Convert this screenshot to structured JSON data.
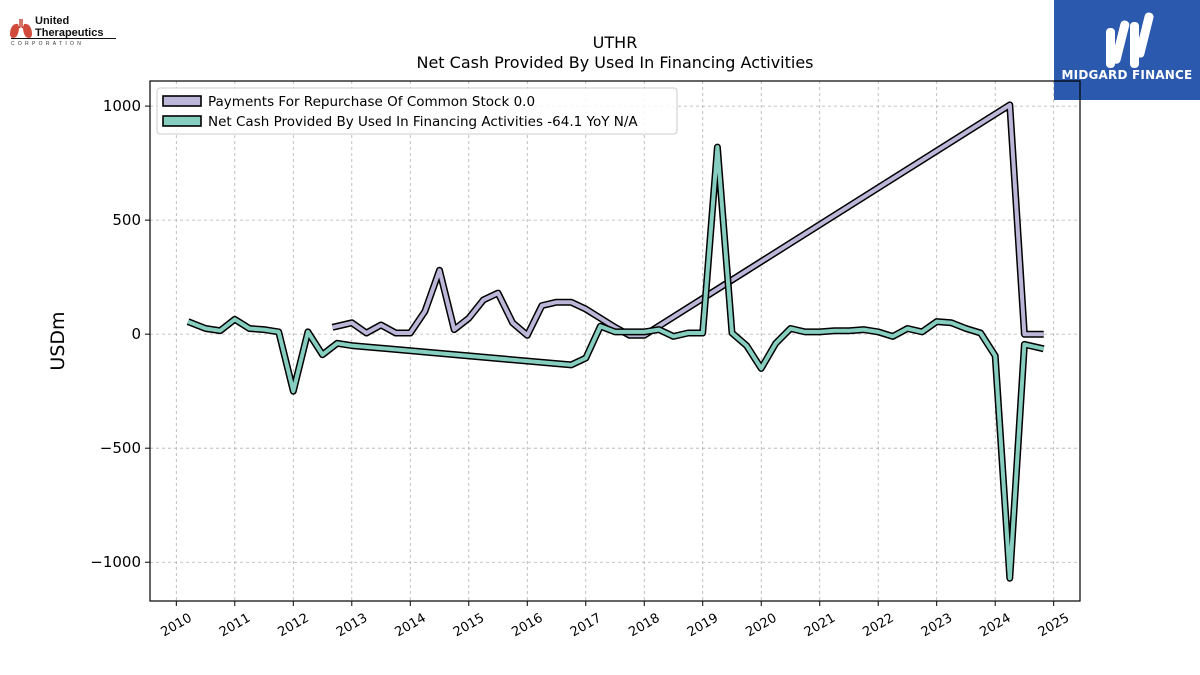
{
  "header": {
    "company_line1": "United",
    "company_line2": "Therapeutics",
    "company_sub": "CORPORATION",
    "brand_name": "MIDGARD FINANCE",
    "brand_color": "#2a59ad"
  },
  "chart_data": {
    "type": "line",
    "title": "UTHR",
    "subtitle": "Net Cash Provided By Used In Financing Activities",
    "ylabel": "USDm",
    "xlim": [
      2009.55,
      2025.45
    ],
    "ylim": [
      -1170,
      1110
    ],
    "x_ticks": [
      2010,
      2011,
      2012,
      2013,
      2014,
      2015,
      2016,
      2017,
      2018,
      2019,
      2020,
      2021,
      2022,
      2023,
      2024,
      2025
    ],
    "x_tick_labels": [
      "2010",
      "2011",
      "2012",
      "2013",
      "2014",
      "2015",
      "2016",
      "2017",
      "2018",
      "2019",
      "2020",
      "2021",
      "2022",
      "2023",
      "2024",
      "2025"
    ],
    "y_ticks": [
      1000,
      500,
      0,
      -500,
      -1000
    ],
    "y_tick_labels": [
      "1000",
      "500",
      "0",
      "−500",
      "−1000"
    ],
    "grid": true,
    "legend_position": "top-left",
    "series": [
      {
        "name": "Payments For Repurchase Of Common Stock  0.0",
        "color": "#bcb7d9",
        "x": [
          2012.67,
          2013.0,
          2013.25,
          2013.5,
          2013.75,
          2014.0,
          2014.25,
          2014.5,
          2014.75,
          2015.0,
          2015.25,
          2015.5,
          2015.75,
          2016.0,
          2016.25,
          2016.5,
          2016.75,
          2017.0,
          2017.25,
          2017.5,
          2017.75,
          2018.0,
          2024.25,
          2024.5,
          2024.83
        ],
        "y": [
          30,
          50,
          5,
          40,
          5,
          5,
          100,
          280,
          20,
          70,
          150,
          180,
          50,
          -5,
          125,
          140,
          140,
          110,
          70,
          30,
          -5,
          -5,
          1005,
          0,
          0
        ]
      },
      {
        "name": "Net Cash Provided By Used In Financing Activities  -64.1 YoY N/A",
        "color": "#86cfc0",
        "x": [
          2010.2,
          2010.5,
          2010.75,
          2011.0,
          2011.25,
          2011.5,
          2011.75,
          2012.0,
          2012.25,
          2012.5,
          2012.75,
          2013.0,
          2016.75,
          2017.0,
          2017.25,
          2017.5,
          2017.75,
          2018.0,
          2018.25,
          2018.5,
          2018.75,
          2019.0,
          2019.25,
          2019.5,
          2019.75,
          2020.0,
          2020.25,
          2020.5,
          2020.75,
          2021.0,
          2021.25,
          2021.5,
          2021.75,
          2022.0,
          2022.25,
          2022.5,
          2022.75,
          2023.0,
          2023.25,
          2023.5,
          2023.75,
          2024.0,
          2024.25,
          2024.5,
          2024.83
        ],
        "y": [
          55,
          25,
          15,
          65,
          25,
          20,
          10,
          -250,
          10,
          -90,
          -40,
          -50,
          -135,
          -105,
          35,
          10,
          10,
          10,
          20,
          -10,
          5,
          5,
          820,
          5,
          -50,
          -150,
          -40,
          25,
          10,
          10,
          15,
          15,
          20,
          10,
          -10,
          25,
          10,
          55,
          50,
          25,
          5,
          -95,
          -1070,
          -45,
          -64.1
        ]
      }
    ]
  }
}
